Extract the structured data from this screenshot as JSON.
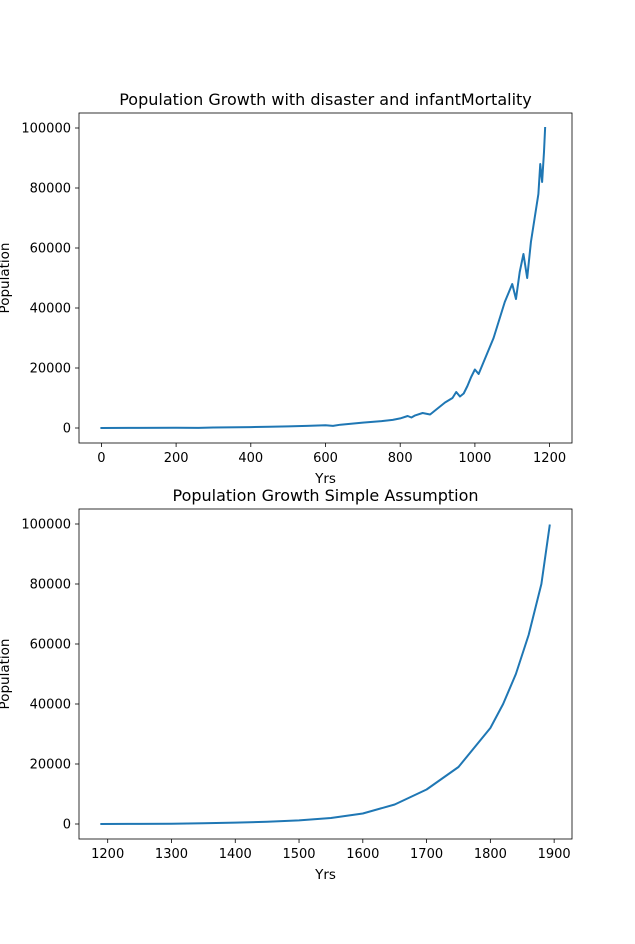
{
  "chart_data": [
    {
      "type": "line",
      "title": "Population Growth with disaster and infantMortality",
      "xlabel": "Yrs",
      "ylabel": "Population",
      "xlim": [
        -60,
        1260
      ],
      "ylim": [
        -5000,
        105000
      ],
      "xticks": [
        0,
        200,
        400,
        600,
        800,
        1000,
        1200
      ],
      "yticks": [
        0,
        20000,
        40000,
        60000,
        80000,
        100000
      ],
      "grid": false,
      "series": [
        {
          "color": "#1f77b4",
          "x": [
            0,
            100,
            200,
            260,
            300,
            400,
            450,
            500,
            550,
            600,
            620,
            640,
            700,
            750,
            780,
            800,
            820,
            830,
            840,
            860,
            880,
            900,
            920,
            940,
            950,
            960,
            970,
            980,
            990,
            1000,
            1010,
            1020,
            1030,
            1040,
            1050,
            1060,
            1070,
            1080,
            1090,
            1100,
            1110,
            1120,
            1130,
            1140,
            1150,
            1160,
            1170,
            1175,
            1180,
            1185,
            1188
          ],
          "y": [
            0,
            50,
            100,
            50,
            150,
            300,
            400,
            550,
            700,
            900,
            700,
            1100,
            1800,
            2300,
            2700,
            3200,
            4000,
            3500,
            4200,
            5000,
            4500,
            6500,
            8500,
            10000,
            12000,
            10500,
            11500,
            14000,
            17000,
            19500,
            18000,
            21000,
            24000,
            27000,
            30000,
            34000,
            38000,
            42000,
            45000,
            48000,
            43000,
            52000,
            58000,
            50000,
            62000,
            70000,
            78000,
            88000,
            82000,
            92000,
            100000
          ]
        }
      ]
    },
    {
      "type": "line",
      "title": "Population Growth Simple Assumption",
      "xlabel": "Yrs",
      "ylabel": "Population",
      "xlim": [
        1155,
        1928
      ],
      "ylim": [
        -5000,
        105000
      ],
      "xticks": [
        1200,
        1300,
        1400,
        1500,
        1600,
        1700,
        1800,
        1900
      ],
      "yticks": [
        0,
        20000,
        40000,
        60000,
        80000,
        100000
      ],
      "grid": false,
      "series": [
        {
          "color": "#1f77b4",
          "x": [
            1190,
            1250,
            1300,
            1350,
            1400,
            1450,
            1500,
            1550,
            1600,
            1650,
            1700,
            1750,
            1800,
            1820,
            1840,
            1860,
            1880,
            1893
          ],
          "y": [
            0,
            50,
            100,
            250,
            450,
            750,
            1200,
            2000,
            3500,
            6500,
            11500,
            19000,
            32000,
            40000,
            50000,
            63000,
            80000,
            99500
          ]
        }
      ]
    }
  ]
}
